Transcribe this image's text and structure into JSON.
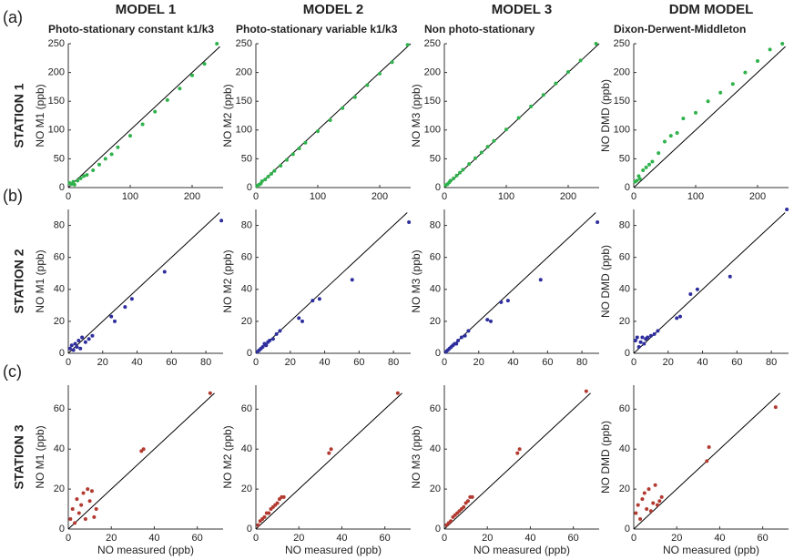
{
  "figure": {
    "columns": [
      {
        "title": "MODEL 1",
        "subtitle": "Photo-stationary constant k1/k3"
      },
      {
        "title": "MODEL 2",
        "subtitle": "Photo-stationary variable k1/k3"
      },
      {
        "title": "MODEL 3",
        "subtitle": "Non photo-stationary"
      },
      {
        "title": "DDM MODEL",
        "subtitle": "Dixon-Derwent-Middleton"
      }
    ],
    "rows": [
      {
        "letter": "(a)",
        "station": "STATION 1"
      },
      {
        "letter": "(b)",
        "station": "STATION 2"
      },
      {
        "letter": "(c)",
        "station": "STATION 3"
      }
    ]
  },
  "chart_data": [
    {
      "type": "scatter",
      "ylabel": "NO M1 (ppb)",
      "color": "#2fb24c",
      "xlim": [
        0,
        250
      ],
      "ylim": [
        0,
        250
      ],
      "xticks": [
        0,
        100,
        200
      ],
      "yticks": [
        0,
        50,
        100,
        150,
        200,
        250
      ],
      "identity_line": [
        0,
        245
      ],
      "x": [
        2,
        5,
        8,
        10,
        15,
        20,
        25,
        30,
        40,
        50,
        60,
        70,
        80,
        100,
        120,
        140,
        160,
        180,
        200,
        220,
        240
      ],
      "values": [
        8,
        6,
        10,
        5,
        12,
        16,
        20,
        22,
        30,
        40,
        50,
        58,
        70,
        90,
        110,
        132,
        152,
        172,
        195,
        215,
        250
      ]
    },
    {
      "type": "scatter",
      "ylabel": "NO M2 (ppb)",
      "color": "#2fb24c",
      "xlim": [
        0,
        250
      ],
      "ylim": [
        0,
        250
      ],
      "xticks": [
        0,
        100,
        200
      ],
      "yticks": [
        0,
        50,
        100,
        150,
        200,
        250
      ],
      "identity_line": [
        0,
        250
      ],
      "x": [
        2,
        5,
        8,
        10,
        15,
        20,
        25,
        30,
        40,
        50,
        60,
        70,
        80,
        100,
        120,
        140,
        160,
        180,
        200,
        220,
        245
      ],
      "values": [
        3,
        5,
        7,
        11,
        14,
        19,
        24,
        29,
        38,
        48,
        58,
        68,
        78,
        98,
        117,
        138,
        157,
        178,
        198,
        218,
        248
      ]
    },
    {
      "type": "scatter",
      "ylabel": "NO M3 (ppb)",
      "color": "#2fb24c",
      "xlim": [
        0,
        250
      ],
      "ylim": [
        0,
        250
      ],
      "xticks": [
        0,
        100,
        200
      ],
      "yticks": [
        0,
        50,
        100,
        150,
        200,
        250
      ],
      "identity_line": [
        0,
        250
      ],
      "x": [
        2,
        5,
        8,
        10,
        15,
        20,
        25,
        30,
        40,
        50,
        60,
        70,
        80,
        100,
        120,
        140,
        160,
        180,
        200,
        220,
        245
      ],
      "values": [
        4,
        6,
        9,
        12,
        16,
        21,
        26,
        31,
        41,
        51,
        61,
        71,
        81,
        101,
        121,
        141,
        161,
        181,
        201,
        221,
        250
      ]
    },
    {
      "type": "scatter",
      "ylabel": "NO DMD (ppb)",
      "color": "#2fb24c",
      "xlim": [
        0,
        250
      ],
      "ylim": [
        0,
        250
      ],
      "xticks": [
        0,
        100,
        200
      ],
      "yticks": [
        0,
        50,
        100,
        150,
        200,
        250
      ],
      "identity_line": [
        0,
        245
      ],
      "x": [
        2,
        5,
        8,
        10,
        15,
        20,
        25,
        30,
        40,
        50,
        60,
        70,
        80,
        100,
        120,
        140,
        160,
        180,
        200,
        220,
        240
      ],
      "values": [
        10,
        12,
        20,
        15,
        30,
        35,
        40,
        45,
        60,
        80,
        90,
        95,
        120,
        130,
        150,
        165,
        180,
        200,
        220,
        240,
        250
      ]
    },
    {
      "type": "scatter",
      "ylabel": "NO M1 (ppb)",
      "color": "#2e2e9e",
      "xlim": [
        0,
        90
      ],
      "ylim": [
        0,
        90
      ],
      "xticks": [
        0,
        20,
        40,
        60,
        80
      ],
      "yticks": [
        0,
        20,
        40,
        60,
        80
      ],
      "identity_line": [
        0,
        88
      ],
      "x": [
        1,
        2,
        3,
        4,
        5,
        6,
        7,
        8,
        10,
        12,
        14,
        25,
        27,
        33,
        37,
        56,
        89
      ],
      "values": [
        3,
        5,
        2,
        6,
        4,
        8,
        3,
        10,
        7,
        9,
        11,
        23,
        20,
        29,
        34,
        51,
        83
      ]
    },
    {
      "type": "scatter",
      "ylabel": "NO M2 (ppb)",
      "color": "#2e2e9e",
      "xlim": [
        0,
        90
      ],
      "ylim": [
        0,
        90
      ],
      "xticks": [
        0,
        20,
        40,
        60,
        80
      ],
      "yticks": [
        0,
        20,
        40,
        60,
        80
      ],
      "identity_line": [
        0,
        88
      ],
      "x": [
        1,
        2,
        3,
        4,
        5,
        6,
        7,
        8,
        10,
        12,
        14,
        25,
        27,
        33,
        37,
        56,
        89
      ],
      "values": [
        1,
        2,
        3,
        4,
        6,
        5,
        7,
        8,
        9,
        12,
        14,
        22,
        20,
        33,
        34,
        46,
        82
      ]
    },
    {
      "type": "scatter",
      "ylabel": "NO M3 (ppb)",
      "color": "#2e2e9e",
      "xlim": [
        0,
        90
      ],
      "ylim": [
        0,
        90
      ],
      "xticks": [
        0,
        20,
        40,
        60,
        80
      ],
      "yticks": [
        0,
        20,
        40,
        60,
        80
      ],
      "identity_line": [
        0,
        88
      ],
      "x": [
        1,
        2,
        3,
        4,
        5,
        6,
        7,
        8,
        10,
        12,
        14,
        25,
        27,
        33,
        37,
        56,
        89
      ],
      "values": [
        1,
        2,
        3,
        4,
        5,
        6,
        6,
        8,
        10,
        11,
        14,
        21,
        20,
        32,
        33,
        46,
        82
      ]
    },
    {
      "type": "scatter",
      "ylabel": "NO DMD (ppb)",
      "color": "#2e2e9e",
      "xlim": [
        0,
        90
      ],
      "ylim": [
        0,
        90
      ],
      "xticks": [
        0,
        20,
        40,
        60,
        80
      ],
      "yticks": [
        0,
        20,
        40,
        60,
        80
      ],
      "identity_line": [
        0,
        88
      ],
      "x": [
        1,
        2,
        3,
        4,
        5,
        6,
        7,
        8,
        10,
        12,
        14,
        25,
        27,
        33,
        37,
        56,
        89
      ],
      "values": [
        8,
        10,
        4,
        7,
        10,
        6,
        9,
        10,
        11,
        12,
        14,
        22,
        23,
        37,
        40,
        48,
        90
      ]
    },
    {
      "type": "scatter",
      "ylabel": "NO M1 (ppb)",
      "xlabel": "NO measured (ppb)",
      "color": "#b23a30",
      "xlim": [
        0,
        72
      ],
      "ylim": [
        0,
        72
      ],
      "xticks": [
        0,
        20,
        40,
        60
      ],
      "yticks": [
        0,
        20,
        40,
        60
      ],
      "identity_line": [
        0,
        68
      ],
      "x": [
        1,
        2,
        3,
        4,
        5,
        6,
        7,
        8,
        9,
        10,
        11,
        12,
        13,
        34,
        35,
        66
      ],
      "values": [
        5,
        10,
        3,
        15,
        8,
        12,
        18,
        5,
        20,
        14,
        19,
        6,
        10,
        39,
        40,
        68
      ]
    },
    {
      "type": "scatter",
      "ylabel": "NO M2 (ppb)",
      "xlabel": "NO measured (ppb)",
      "color": "#b23a30",
      "xlim": [
        0,
        72
      ],
      "ylim": [
        0,
        72
      ],
      "xticks": [
        0,
        20,
        40,
        60
      ],
      "yticks": [
        0,
        20,
        40,
        60
      ],
      "identity_line": [
        0,
        68
      ],
      "x": [
        1,
        2,
        3,
        4,
        5,
        6,
        7,
        8,
        9,
        10,
        11,
        12,
        13,
        34,
        35,
        66
      ],
      "values": [
        2,
        4,
        5,
        6,
        8,
        8,
        10,
        11,
        12,
        13,
        15,
        16,
        16,
        38,
        40,
        68
      ]
    },
    {
      "type": "scatter",
      "ylabel": "NO M3 (ppb)",
      "xlabel": "NO measured (ppb)",
      "color": "#b23a30",
      "xlim": [
        0,
        72
      ],
      "ylim": [
        0,
        72
      ],
      "xticks": [
        0,
        20,
        40,
        60
      ],
      "yticks": [
        0,
        20,
        40,
        60
      ],
      "identity_line": [
        0,
        68
      ],
      "x": [
        1,
        2,
        3,
        4,
        5,
        6,
        7,
        8,
        9,
        10,
        11,
        12,
        13,
        34,
        35,
        66
      ],
      "values": [
        2,
        3,
        4,
        6,
        7,
        8,
        9,
        10,
        11,
        13,
        14,
        16,
        16,
        38,
        40,
        69
      ]
    },
    {
      "type": "scatter",
      "ylabel": "NO DMD (ppb)",
      "xlabel": "NO measured (ppb)",
      "color": "#b23a30",
      "xlim": [
        0,
        72
      ],
      "ylim": [
        0,
        72
      ],
      "xticks": [
        0,
        20,
        40,
        60
      ],
      "yticks": [
        0,
        20,
        40,
        60
      ],
      "identity_line": [
        0,
        68
      ],
      "x": [
        1,
        2,
        3,
        4,
        5,
        6,
        7,
        8,
        9,
        10,
        11,
        12,
        13,
        34,
        35,
        66
      ],
      "values": [
        8,
        12,
        5,
        15,
        18,
        10,
        20,
        9,
        13,
        22,
        12,
        14,
        16,
        34,
        41,
        61
      ]
    }
  ]
}
